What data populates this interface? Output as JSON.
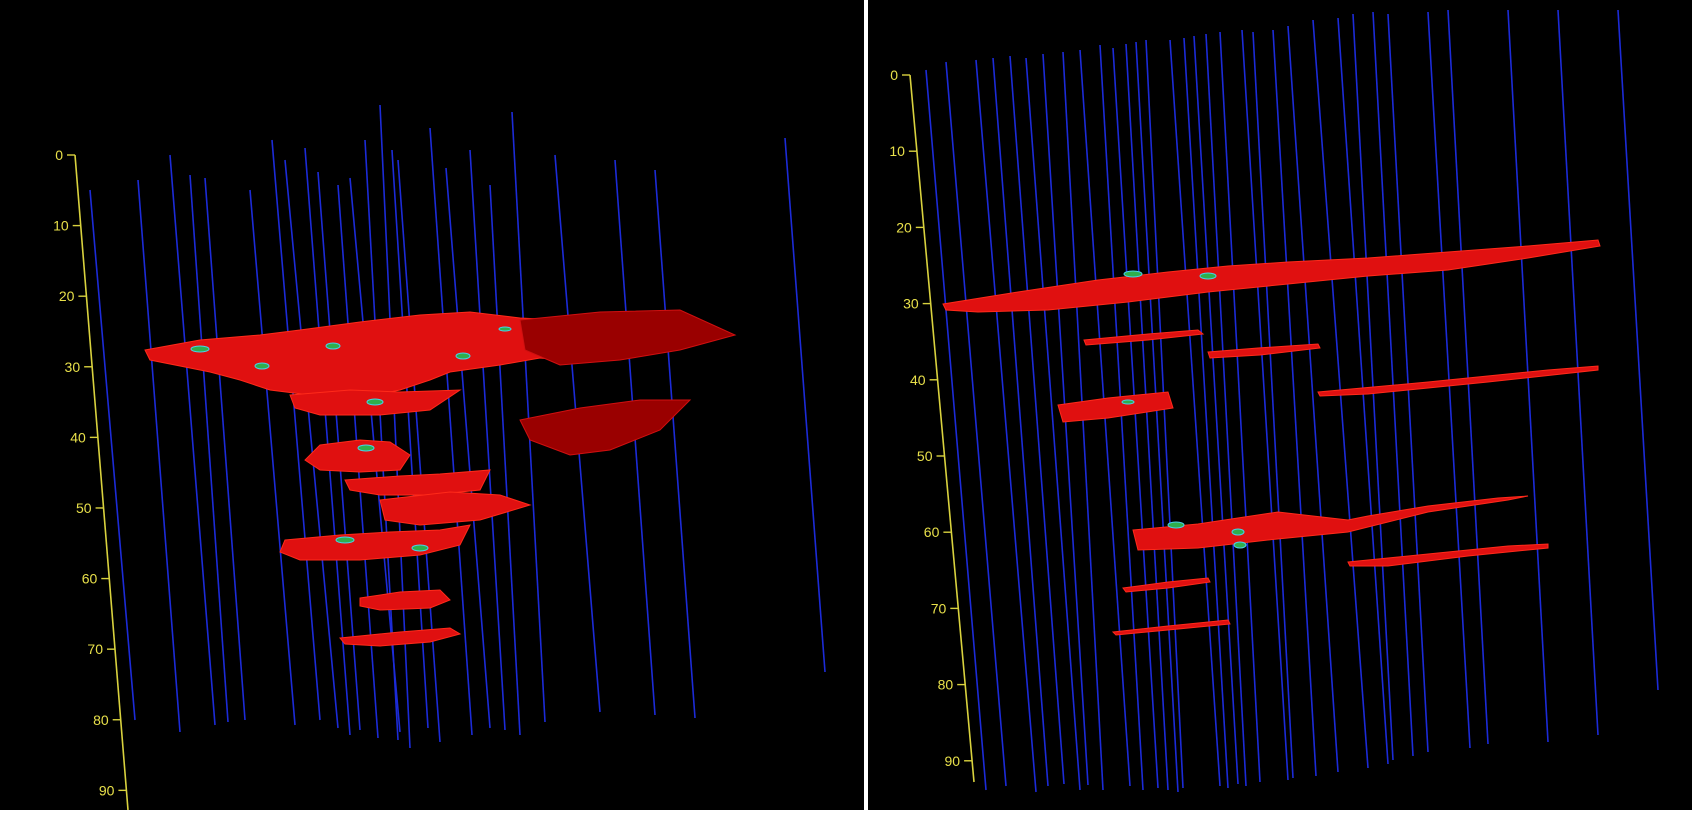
{
  "panels": [
    {
      "id": "left",
      "axis": {
        "ticks": [
          "0",
          "10",
          "20",
          "30",
          "40",
          "50",
          "60",
          "70",
          "80",
          "90"
        ]
      }
    },
    {
      "id": "right",
      "axis": {
        "ticks": [
          "0",
          "10",
          "20",
          "30",
          "40",
          "50",
          "60",
          "70",
          "80",
          "90"
        ]
      }
    }
  ],
  "colors": {
    "background": "#000000",
    "axis": "#d9d23e",
    "wells": "#1c2bd8",
    "bodies": "#e01010",
    "markers": "#2fae4c"
  }
}
